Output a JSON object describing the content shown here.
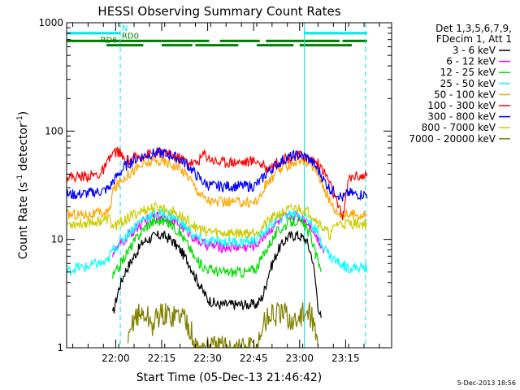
{
  "chart_data": {
    "type": "line",
    "title": "HESSI Observing Summary Count Rates",
    "xlabel": "Start Time (05-Dec-13 21:46:42)",
    "ylabel_main": "Count Rate (s",
    "ylabel_sup1": "-1",
    "ylabel_mid": " detector",
    "ylabel_sup2": "-1",
    "ylabel_end": ")",
    "yscale": "log",
    "ylim": [
      1,
      1000
    ],
    "y_ticks": [
      "1",
      "10",
      "100",
      "1000"
    ],
    "xlim_min": [
      -2,
      104
    ],
    "x_ticks": [
      {
        "label": "22:00",
        "m": 14
      },
      {
        "label": "22:15",
        "m": 29
      },
      {
        "label": "22:30",
        "m": 44
      },
      {
        "label": "22:45",
        "m": 59
      },
      {
        "label": "23:00",
        "m": 74
      },
      {
        "label": "23:15",
        "m": 89
      }
    ],
    "legend_header": [
      "Det 1,3,5,6,7,9,",
      "FDecim 1, Att 1"
    ],
    "legend_position": "right",
    "timestamp": "5-Dec-2013 18:56",
    "flags": [
      {
        "name": "N",
        "label": "N",
        "color": "#00e5e5",
        "level": 800,
        "spans": [
          [
            -2,
            15.5
          ],
          [
            75.5,
            96
          ]
        ],
        "label_m": 16
      },
      {
        "name": "RD0",
        "label": "RD0",
        "color": "#007d00",
        "level": 680,
        "spans": [
          [
            -2,
            44.5
          ],
          [
            48,
            61
          ],
          [
            63,
            87
          ],
          [
            88,
            96
          ]
        ],
        "label_m": 16
      },
      {
        "name": "RD6",
        "label": "RD6",
        "color": "#007d00",
        "level": 620,
        "spans": [
          [
            11,
            23
          ],
          [
            29,
            39
          ],
          [
            40,
            54
          ],
          [
            60,
            72
          ],
          [
            74,
            91
          ]
        ],
        "label_m": 9
      }
    ],
    "saa_lines": [
      {
        "m": 15.5,
        "color": "#00e5e5",
        "style": "dashed"
      },
      {
        "m": 75.5,
        "color": "#00e5e5",
        "style": "solid"
      },
      {
        "m": 95.5,
        "color": "#00e5e5",
        "style": "dashed"
      }
    ],
    "series": [
      {
        "name": "3 - 6 keV",
        "color": "#000000",
        "points": [
          [
            13,
            1
          ],
          [
            13,
            2
          ],
          [
            15,
            3.5
          ],
          [
            17,
            5
          ],
          [
            20,
            7
          ],
          [
            23,
            9.5
          ],
          [
            26,
            10.5
          ],
          [
            29,
            11
          ],
          [
            32,
            10
          ],
          [
            35,
            8
          ],
          [
            38,
            6
          ],
          [
            40,
            4.5
          ],
          [
            42,
            3.5
          ],
          [
            44,
            2.8
          ],
          [
            47,
            2.5
          ],
          [
            52,
            2.5
          ],
          [
            57,
            2.5
          ],
          [
            60,
            2.5
          ],
          [
            62,
            3
          ],
          [
            64,
            5
          ],
          [
            67,
            8
          ],
          [
            70,
            10.5
          ],
          [
            73,
            11
          ],
          [
            76,
            10
          ],
          [
            78,
            7
          ],
          [
            79,
            4.5
          ],
          [
            80,
            2.5
          ],
          [
            81,
            1.8
          ]
        ]
      },
      {
        "name": "6 - 12 keV",
        "color": "#ff00ff",
        "points": [
          [
            13,
            7.5
          ],
          [
            15,
            8.5
          ],
          [
            17,
            10
          ],
          [
            20,
            12
          ],
          [
            23,
            14.5
          ],
          [
            26,
            16
          ],
          [
            29,
            16.5
          ],
          [
            32,
            15.5
          ],
          [
            35,
            13.5
          ],
          [
            38,
            11.5
          ],
          [
            40,
            10
          ],
          [
            43,
            9
          ],
          [
            48,
            8.5
          ],
          [
            53,
            8.5
          ],
          [
            57,
            8.5
          ],
          [
            60,
            9
          ],
          [
            62,
            10.5
          ],
          [
            64,
            12
          ],
          [
            67,
            14.5
          ],
          [
            70,
            16
          ],
          [
            73,
            16.5
          ],
          [
            76,
            15
          ],
          [
            78,
            13
          ],
          [
            80,
            10
          ],
          [
            82,
            8
          ]
        ]
      },
      {
        "name": "12 - 25 keV",
        "color": "#00dd00",
        "points": [
          [
            13,
            4.5
          ],
          [
            15,
            5.5
          ],
          [
            17,
            7
          ],
          [
            20,
            9.5
          ],
          [
            23,
            12.5
          ],
          [
            26,
            14.5
          ],
          [
            29,
            15
          ],
          [
            32,
            14
          ],
          [
            35,
            11.5
          ],
          [
            38,
            8.5
          ],
          [
            40,
            6.5
          ],
          [
            43,
            5.5
          ],
          [
            48,
            5
          ],
          [
            53,
            5
          ],
          [
            57,
            5
          ],
          [
            60,
            5.5
          ],
          [
            62,
            7
          ],
          [
            64,
            9
          ],
          [
            67,
            12
          ],
          [
            70,
            14
          ],
          [
            73,
            15
          ],
          [
            76,
            13
          ],
          [
            78,
            10
          ],
          [
            79,
            7.5
          ],
          [
            81,
            5.5
          ]
        ]
      },
      {
        "name": "25 - 50 keV",
        "color": "#00ffff",
        "points": [
          [
            -2,
            5
          ],
          [
            1,
            5.5
          ],
          [
            4,
            5.5
          ],
          [
            8,
            6
          ],
          [
            11,
            6
          ],
          [
            13,
            8
          ],
          [
            15,
            9
          ],
          [
            17,
            10.5
          ],
          [
            20,
            13
          ],
          [
            23,
            15.5
          ],
          [
            26,
            17
          ],
          [
            29,
            17.5
          ],
          [
            32,
            16.5
          ],
          [
            35,
            14.5
          ],
          [
            38,
            12
          ],
          [
            40,
            10.5
          ],
          [
            43,
            9.5
          ],
          [
            48,
            9.5
          ],
          [
            53,
            9.5
          ],
          [
            57,
            9.5
          ],
          [
            60,
            10
          ],
          [
            62,
            11.5
          ],
          [
            64,
            13
          ],
          [
            67,
            15.5
          ],
          [
            70,
            17
          ],
          [
            73,
            17.5
          ],
          [
            76,
            16
          ],
          [
            78,
            14
          ],
          [
            80,
            11
          ],
          [
            82,
            8.5
          ],
          [
            84,
            7
          ],
          [
            87,
            6
          ],
          [
            90,
            5.5
          ],
          [
            93,
            5.5
          ],
          [
            96,
            5.5
          ]
        ]
      },
      {
        "name": "50 - 100 keV",
        "color": "#ffa500",
        "points": [
          [
            -2,
            17
          ],
          [
            2,
            17
          ],
          [
            6,
            17
          ],
          [
            10,
            17.5
          ],
          [
            12,
            18
          ],
          [
            13,
            28
          ],
          [
            15,
            33
          ],
          [
            17,
            38
          ],
          [
            20,
            44
          ],
          [
            23,
            49
          ],
          [
            26,
            52
          ],
          [
            29,
            53
          ],
          [
            32,
            50
          ],
          [
            35,
            45
          ],
          [
            38,
            38
          ],
          [
            40,
            30
          ],
          [
            43,
            24
          ],
          [
            46,
            22
          ],
          [
            50,
            22
          ],
          [
            55,
            22
          ],
          [
            59,
            22
          ],
          [
            61,
            24
          ],
          [
            63,
            32
          ],
          [
            66,
            40
          ],
          [
            69,
            47
          ],
          [
            72,
            51
          ],
          [
            74,
            53
          ],
          [
            76,
            52
          ],
          [
            78,
            48
          ],
          [
            80,
            40
          ],
          [
            82,
            30
          ],
          [
            84,
            22
          ],
          [
            86,
            18
          ],
          [
            88,
            17
          ],
          [
            92,
            17
          ],
          [
            96,
            17
          ]
        ]
      },
      {
        "name": "100 - 300 keV",
        "color": "#ff0000",
        "points": [
          [
            -2,
            38
          ],
          [
            2,
            38
          ],
          [
            6,
            39
          ],
          [
            9,
            40
          ],
          [
            11,
            48
          ],
          [
            12,
            55
          ],
          [
            13,
            62
          ],
          [
            15,
            65
          ],
          [
            17,
            52
          ],
          [
            20,
            56
          ],
          [
            23,
            60
          ],
          [
            26,
            62
          ],
          [
            29,
            63
          ],
          [
            32,
            60
          ],
          [
            35,
            56
          ],
          [
            38,
            52
          ],
          [
            40,
            50
          ],
          [
            43,
            62
          ],
          [
            44,
            58
          ],
          [
            47,
            52
          ],
          [
            52,
            52
          ],
          [
            57,
            52
          ],
          [
            60,
            54
          ],
          [
            63,
            45
          ],
          [
            66,
            50
          ],
          [
            69,
            55
          ],
          [
            72,
            58
          ],
          [
            74,
            60
          ],
          [
            76,
            58
          ],
          [
            78,
            55
          ],
          [
            80,
            50
          ],
          [
            83,
            38
          ],
          [
            86,
            22
          ],
          [
            88,
            16
          ],
          [
            90,
            36
          ],
          [
            92,
            39
          ],
          [
            96,
            38
          ]
        ]
      },
      {
        "name": "300 - 800 keV",
        "color": "#0000ff",
        "points": [
          [
            -2,
            26
          ],
          [
            2,
            26
          ],
          [
            6,
            27
          ],
          [
            10,
            28
          ],
          [
            12,
            30
          ],
          [
            13,
            34
          ],
          [
            15,
            40
          ],
          [
            17,
            47
          ],
          [
            20,
            54
          ],
          [
            23,
            59
          ],
          [
            26,
            62
          ],
          [
            29,
            63
          ],
          [
            32,
            60
          ],
          [
            35,
            55
          ],
          [
            38,
            47
          ],
          [
            40,
            40
          ],
          [
            43,
            33
          ],
          [
            46,
            31
          ],
          [
            50,
            31
          ],
          [
            55,
            31
          ],
          [
            59,
            31
          ],
          [
            61,
            34
          ],
          [
            63,
            40
          ],
          [
            66,
            48
          ],
          [
            69,
            55
          ],
          [
            72,
            59
          ],
          [
            74,
            60
          ],
          [
            76,
            58
          ],
          [
            78,
            52
          ],
          [
            80,
            44
          ],
          [
            82,
            35
          ],
          [
            84,
            29
          ],
          [
            86,
            27
          ],
          [
            88,
            24
          ],
          [
            90,
            27
          ],
          [
            92,
            26
          ],
          [
            96,
            26
          ]
        ]
      },
      {
        "name": "800 - 7000 keV",
        "color": "#cccc00",
        "points": [
          [
            -2,
            14
          ],
          [
            2,
            14
          ],
          [
            6,
            14.5
          ],
          [
            10,
            15
          ],
          [
            12,
            15.5
          ],
          [
            13,
            13
          ],
          [
            15,
            14
          ],
          [
            17,
            15
          ],
          [
            20,
            17
          ],
          [
            23,
            18.5
          ],
          [
            26,
            19.5
          ],
          [
            29,
            19.5
          ],
          [
            32,
            18.5
          ],
          [
            35,
            16.5
          ],
          [
            38,
            14.5
          ],
          [
            40,
            13
          ],
          [
            43,
            12
          ],
          [
            48,
            11.5
          ],
          [
            53,
            11.5
          ],
          [
            57,
            11.5
          ],
          [
            60,
            12
          ],
          [
            62,
            13
          ],
          [
            64,
            15
          ],
          [
            67,
            17
          ],
          [
            70,
            18.5
          ],
          [
            73,
            19.5
          ],
          [
            76,
            18.5
          ],
          [
            78,
            17
          ],
          [
            80,
            14.5
          ],
          [
            82,
            12.5
          ],
          [
            84,
            11
          ],
          [
            86,
            14
          ],
          [
            88,
            14
          ],
          [
            92,
            14
          ],
          [
            96,
            14
          ]
        ]
      },
      {
        "name": "7000 - 20000 keV",
        "color": "#808000",
        "points": [
          [
            18,
            1
          ],
          [
            20,
            2
          ],
          [
            22,
            2
          ],
          [
            24,
            2
          ],
          [
            26,
            1.6
          ],
          [
            28,
            2
          ],
          [
            30,
            2
          ],
          [
            32,
            2
          ],
          [
            34,
            2
          ],
          [
            36,
            2
          ],
          [
            38,
            1.6
          ],
          [
            40,
            1
          ],
          [
            60,
            1
          ],
          [
            62,
            1.6
          ],
          [
            64,
            2
          ],
          [
            66,
            2
          ],
          [
            68,
            2
          ],
          [
            70,
            2
          ],
          [
            72,
            1.6
          ],
          [
            74,
            2
          ],
          [
            76,
            2
          ],
          [
            78,
            2
          ],
          [
            80,
            1
          ]
        ]
      }
    ]
  }
}
